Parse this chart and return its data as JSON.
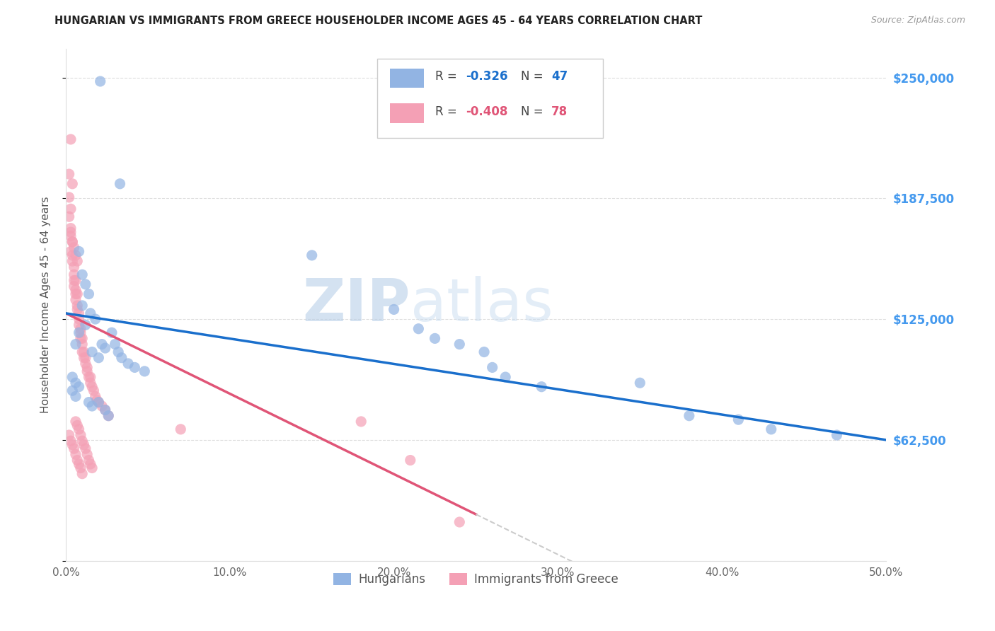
{
  "title": "HUNGARIAN VS IMMIGRANTS FROM GREECE HOUSEHOLDER INCOME AGES 45 - 64 YEARS CORRELATION CHART",
  "source": "Source: ZipAtlas.com",
  "ylabel": "Householder Income Ages 45 - 64 years",
  "xlim": [
    0.0,
    0.5
  ],
  "ylim": [
    0,
    265000
  ],
  "yticks": [
    0,
    62500,
    125000,
    187500,
    250000
  ],
  "ytick_labels": [
    "",
    "$62,500",
    "$125,000",
    "$187,500",
    "$250,000"
  ],
  "xtick_labels": [
    "0.0%",
    "10.0%",
    "20.0%",
    "30.0%",
    "40.0%",
    "50.0%"
  ],
  "xticks": [
    0.0,
    0.1,
    0.2,
    0.3,
    0.4,
    0.5
  ],
  "blue_R": -0.326,
  "blue_N": 47,
  "pink_R": -0.408,
  "pink_N": 78,
  "legend_label_blue": "Hungarians",
  "legend_label_pink": "Immigrants from Greece",
  "blue_color": "#92b4e3",
  "pink_color": "#f4a0b5",
  "blue_line_color": "#1a6fcc",
  "pink_line_color": "#e05577",
  "blue_points": [
    [
      0.021,
      248000
    ],
    [
      0.033,
      195000
    ],
    [
      0.008,
      160000
    ],
    [
      0.01,
      148000
    ],
    [
      0.012,
      143000
    ],
    [
      0.014,
      138000
    ],
    [
      0.01,
      132000
    ],
    [
      0.015,
      128000
    ],
    [
      0.012,
      122000
    ],
    [
      0.008,
      118000
    ],
    [
      0.018,
      125000
    ],
    [
      0.006,
      112000
    ],
    [
      0.022,
      112000
    ],
    [
      0.016,
      108000
    ],
    [
      0.024,
      110000
    ],
    [
      0.02,
      105000
    ],
    [
      0.028,
      118000
    ],
    [
      0.03,
      112000
    ],
    [
      0.032,
      108000
    ],
    [
      0.034,
      105000
    ],
    [
      0.038,
      102000
    ],
    [
      0.042,
      100000
    ],
    [
      0.048,
      98000
    ],
    [
      0.004,
      95000
    ],
    [
      0.006,
      92000
    ],
    [
      0.008,
      90000
    ],
    [
      0.004,
      88000
    ],
    [
      0.006,
      85000
    ],
    [
      0.014,
      82000
    ],
    [
      0.016,
      80000
    ],
    [
      0.02,
      82000
    ],
    [
      0.024,
      78000
    ],
    [
      0.026,
      75000
    ],
    [
      0.15,
      158000
    ],
    [
      0.2,
      130000
    ],
    [
      0.215,
      120000
    ],
    [
      0.225,
      115000
    ],
    [
      0.24,
      112000
    ],
    [
      0.255,
      108000
    ],
    [
      0.26,
      100000
    ],
    [
      0.268,
      95000
    ],
    [
      0.29,
      90000
    ],
    [
      0.35,
      92000
    ],
    [
      0.38,
      75000
    ],
    [
      0.41,
      73000
    ],
    [
      0.43,
      68000
    ],
    [
      0.47,
      65000
    ]
  ],
  "pink_points": [
    [
      0.003,
      218000
    ],
    [
      0.002,
      200000
    ],
    [
      0.004,
      195000
    ],
    [
      0.002,
      188000
    ],
    [
      0.003,
      182000
    ],
    [
      0.002,
      178000
    ],
    [
      0.003,
      172000
    ],
    [
      0.003,
      168000
    ],
    [
      0.004,
      165000
    ],
    [
      0.003,
      160000
    ],
    [
      0.004,
      158000
    ],
    [
      0.004,
      155000
    ],
    [
      0.005,
      152000
    ],
    [
      0.005,
      148000
    ],
    [
      0.005,
      145000
    ],
    [
      0.006,
      145000
    ],
    [
      0.005,
      142000
    ],
    [
      0.006,
      140000
    ],
    [
      0.006,
      138000
    ],
    [
      0.007,
      138000
    ],
    [
      0.006,
      135000
    ],
    [
      0.007,
      132000
    ],
    [
      0.007,
      130000
    ],
    [
      0.008,
      128000
    ],
    [
      0.008,
      125000
    ],
    [
      0.008,
      122000
    ],
    [
      0.009,
      120000
    ],
    [
      0.009,
      118000
    ],
    [
      0.009,
      115000
    ],
    [
      0.01,
      115000
    ],
    [
      0.01,
      112000
    ],
    [
      0.01,
      108000
    ],
    [
      0.011,
      108000
    ],
    [
      0.011,
      105000
    ],
    [
      0.012,
      105000
    ],
    [
      0.012,
      102000
    ],
    [
      0.013,
      100000
    ],
    [
      0.013,
      98000
    ],
    [
      0.014,
      95000
    ],
    [
      0.015,
      95000
    ],
    [
      0.015,
      92000
    ],
    [
      0.016,
      90000
    ],
    [
      0.017,
      88000
    ],
    [
      0.018,
      85000
    ],
    [
      0.019,
      83000
    ],
    [
      0.02,
      82000
    ],
    [
      0.022,
      80000
    ],
    [
      0.024,
      78000
    ],
    [
      0.026,
      75000
    ],
    [
      0.006,
      72000
    ],
    [
      0.007,
      70000
    ],
    [
      0.008,
      68000
    ],
    [
      0.009,
      65000
    ],
    [
      0.01,
      62000
    ],
    [
      0.011,
      60000
    ],
    [
      0.012,
      58000
    ],
    [
      0.013,
      55000
    ],
    [
      0.014,
      52000
    ],
    [
      0.015,
      50000
    ],
    [
      0.016,
      48000
    ],
    [
      0.002,
      65000
    ],
    [
      0.003,
      62000
    ],
    [
      0.004,
      60000
    ],
    [
      0.005,
      58000
    ],
    [
      0.006,
      55000
    ],
    [
      0.007,
      52000
    ],
    [
      0.008,
      50000
    ],
    [
      0.009,
      48000
    ],
    [
      0.01,
      45000
    ],
    [
      0.07,
      68000
    ],
    [
      0.18,
      72000
    ],
    [
      0.21,
      52000
    ],
    [
      0.24,
      20000
    ],
    [
      0.003,
      170000
    ],
    [
      0.004,
      165000
    ],
    [
      0.005,
      162000
    ],
    [
      0.006,
      158000
    ],
    [
      0.007,
      155000
    ]
  ]
}
